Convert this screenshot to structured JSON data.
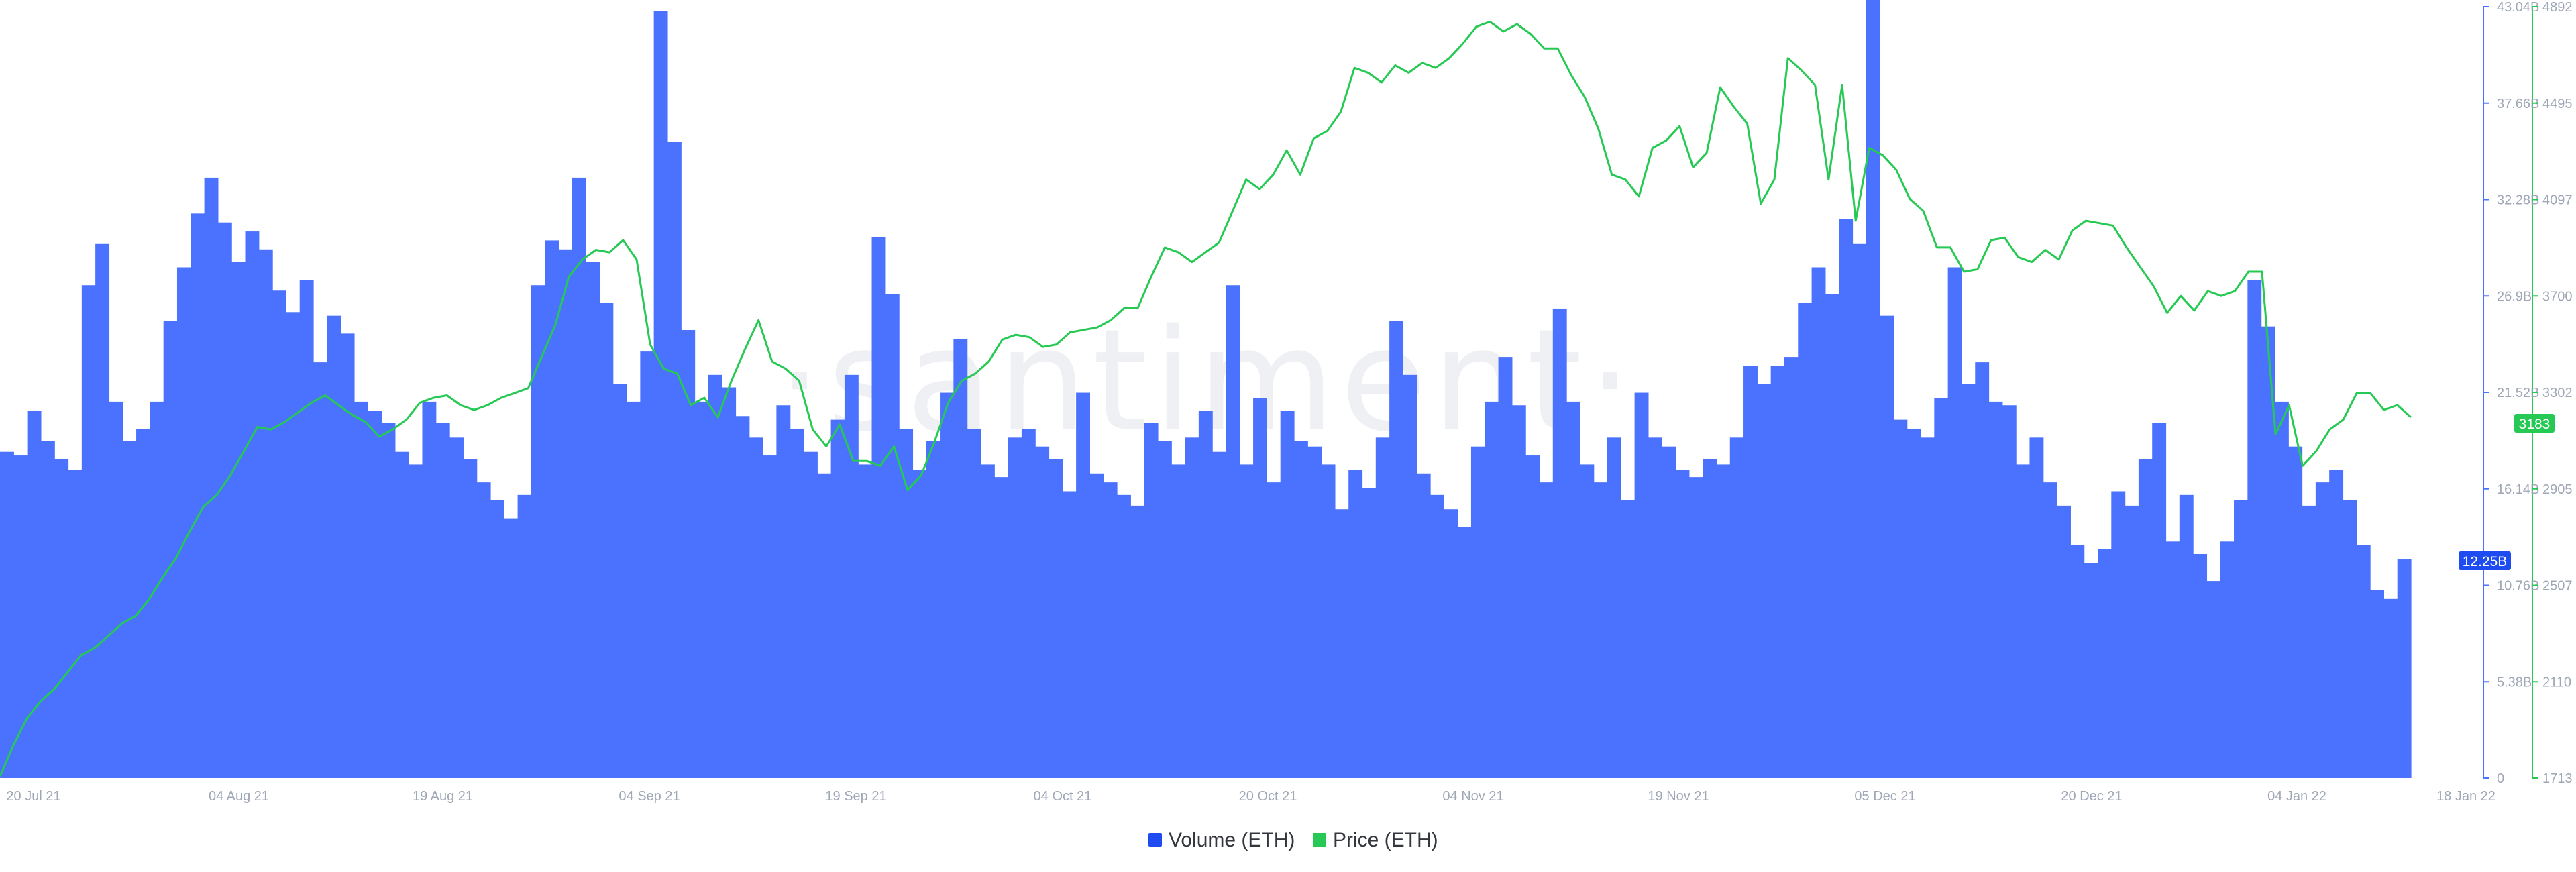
{
  "watermark": "·santiment·",
  "chart_data": {
    "type": "bar+line",
    "title": "",
    "x_tick_labels": [
      "20 Jul 21",
      "04 Aug 21",
      "19 Aug 21",
      "04 Sep 21",
      "19 Sep 21",
      "04 Oct 21",
      "20 Oct 21",
      "04 Nov 21",
      "19 Nov 21",
      "05 Dec 21",
      "20 Dec 21",
      "04 Jan 22",
      "18 Jan 22"
    ],
    "volume_axis": {
      "unit": "B",
      "ylim": [
        0,
        43.04
      ],
      "tick_labels": [
        "0",
        "5.38B",
        "10.76B",
        "16.14B",
        "21.52B",
        "26.9B",
        "32.28B",
        "37.66B",
        "43.04B"
      ],
      "color": "#4a72ff",
      "current_value_label": "12.25B"
    },
    "price_axis": {
      "ylim": [
        1713,
        4892
      ],
      "tick_labels": [
        "1713",
        "2110",
        "2507",
        "2905",
        "3302",
        "3700",
        "4097",
        "4495",
        "4892"
      ],
      "color": "#26c953",
      "current_value_label": "3183"
    },
    "legend": {
      "placement": "bottom-center",
      "items": [
        {
          "label": "Volume (ETH)",
          "color": "#1f4cf0"
        },
        {
          "label": "Price (ETH)",
          "color": "#26c953"
        }
      ]
    },
    "series": [
      {
        "name": "Volume (ETH)",
        "kind": "bar",
        "x_start_day": 0,
        "x_end_day": 178,
        "values": [
          18.2,
          18.0,
          20.5,
          18.8,
          17.8,
          17.2,
          27.5,
          29.8,
          21.0,
          18.8,
          19.5,
          21.0,
          25.5,
          28.5,
          31.5,
          33.5,
          31.0,
          28.8,
          30.5,
          29.5,
          27.2,
          26.0,
          27.8,
          23.2,
          25.8,
          24.8,
          21.0,
          20.5,
          19.8,
          18.2,
          17.5,
          21.0,
          19.8,
          19.0,
          17.8,
          16.5,
          15.5,
          14.5,
          15.8,
          27.5,
          30.0,
          29.5,
          33.5,
          28.8,
          26.5,
          22.0,
          21.0,
          23.8,
          42.8,
          35.5,
          25.0,
          21.0,
          22.5,
          21.8,
          20.2,
          19.0,
          18.0,
          20.8,
          19.5,
          18.2,
          17.0,
          20.0,
          22.5,
          17.5,
          30.2,
          27.0,
          19.5,
          17.2,
          18.8,
          21.5,
          24.5,
          19.5,
          17.5,
          16.8,
          19.0,
          19.5,
          18.5,
          17.8,
          16.0,
          21.5,
          17.0,
          16.5,
          15.8,
          15.2,
          19.8,
          18.8,
          17.5,
          19.0,
          20.5,
          18.2,
          27.5,
          17.5,
          21.2,
          16.5,
          20.5,
          18.8,
          18.5,
          17.5,
          15.0,
          17.2,
          16.2,
          19.0,
          25.5,
          22.5,
          17.0,
          15.8,
          15.0,
          14.0,
          18.5,
          21.0,
          23.5,
          20.8,
          18.0,
          16.5,
          26.2,
          21.0,
          17.5,
          16.5,
          19.0,
          15.5,
          21.5,
          19.0,
          18.5,
          17.2,
          16.8,
          17.8,
          17.5,
          19.0,
          23.0,
          22.0,
          23.0,
          23.5,
          26.5,
          28.5,
          27.0,
          31.2,
          29.8,
          43.5,
          25.8,
          20.0,
          19.5,
          19.0,
          21.2,
          28.5,
          22.0,
          23.2,
          21.0,
          20.8,
          17.5,
          19.0,
          16.5,
          15.2,
          13.0,
          12.0,
          12.8,
          16.0,
          15.2,
          17.8,
          19.8,
          13.2,
          15.8,
          12.5,
          11.0,
          13.2,
          15.5,
          27.8,
          25.2,
          21.0,
          18.5,
          15.2,
          16.5,
          17.2,
          15.5,
          13.0,
          10.5,
          10.0,
          12.2
        ]
      },
      {
        "name": "Price (ETH)",
        "kind": "line",
        "x_start_day": 0,
        "x_end_day": 178,
        "values": [
          1720,
          1850,
          1960,
          2030,
          2080,
          2150,
          2220,
          2250,
          2300,
          2350,
          2380,
          2450,
          2540,
          2620,
          2730,
          2830,
          2880,
          2960,
          3060,
          3160,
          3150,
          3180,
          3220,
          3260,
          3290,
          3250,
          3210,
          3180,
          3120,
          3150,
          3190,
          3260,
          3280,
          3290,
          3250,
          3230,
          3250,
          3280,
          3300,
          3320,
          3450,
          3580,
          3780,
          3850,
          3890,
          3880,
          3930,
          3850,
          3500,
          3400,
          3380,
          3250,
          3280,
          3200,
          3350,
          3480,
          3600,
          3430,
          3400,
          3350,
          3150,
          3080,
          3170,
          3020,
          3020,
          3000,
          3080,
          2900,
          2960,
          3100,
          3260,
          3350,
          3380,
          3430,
          3520,
          3540,
          3530,
          3490,
          3500,
          3550,
          3560,
          3570,
          3600,
          3650,
          3650,
          3780,
          3900,
          3880,
          3840,
          3880,
          3920,
          4050,
          4180,
          4140,
          4200,
          4300,
          4200,
          4350,
          4380,
          4460,
          4640,
          4620,
          4580,
          4650,
          4620,
          4660,
          4640,
          4680,
          4740,
          4810,
          4830,
          4790,
          4820,
          4780,
          4720,
          4720,
          4610,
          4520,
          4390,
          4200,
          4180,
          4110,
          4310,
          4340,
          4400,
          4230,
          4290,
          4560,
          4480,
          4410,
          4080,
          4180,
          4680,
          4630,
          4570,
          4180,
          4570,
          4010,
          4310,
          4280,
          4220,
          4100,
          4050,
          3900,
          3900,
          3800,
          3810,
          3930,
          3940,
          3860,
          3840,
          3890,
          3850,
          3970,
          4010,
          4000,
          3990,
          3900,
          3820,
          3740,
          3630,
          3700,
          3640,
          3720,
          3700,
          3720,
          3800,
          3800,
          3130,
          3250,
          3000,
          3060,
          3150,
          3190,
          3300,
          3300,
          3230,
          3250,
          3200
        ]
      }
    ]
  }
}
